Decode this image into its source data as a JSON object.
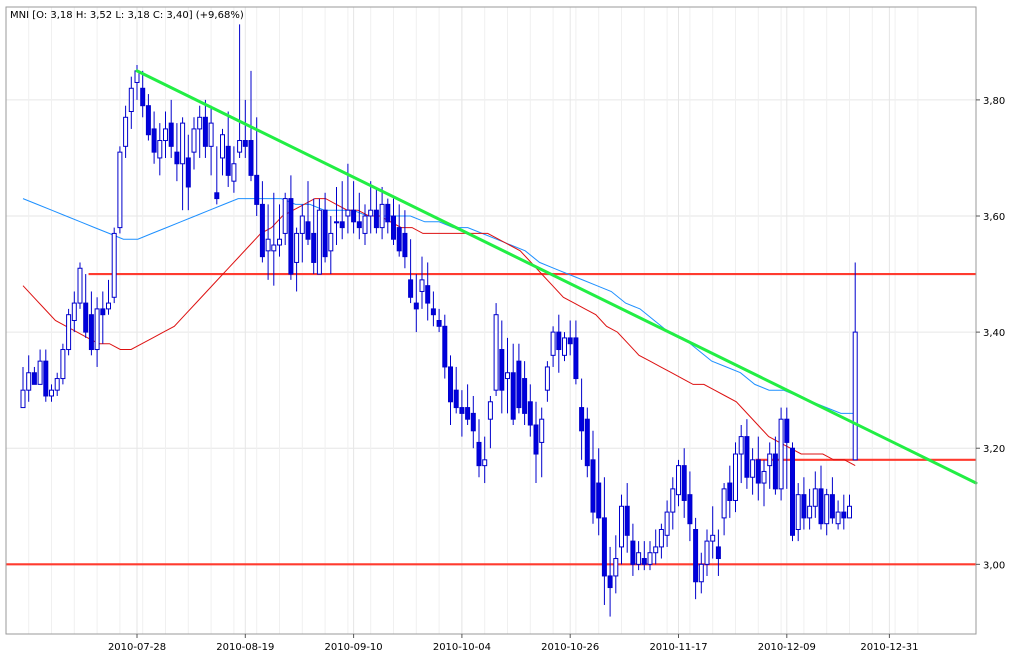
{
  "chart_data": {
    "type": "candlestick",
    "symbol": "MNI",
    "legend_text": "MNI [O: 3,18  H: 3,52  L: 3,18  C: 3,40] (+9,68%)",
    "last_bar": {
      "open": "3,18",
      "high": "3,52",
      "low": "3,18",
      "close": "3,40",
      "change": "+9,68%"
    },
    "x_tick_labels": [
      "2010-07-28",
      "2010-08-19",
      "2010-09-10",
      "2010-10-04",
      "2010-10-26",
      "2010-11-17",
      "2010-12-09",
      "2010-12-31"
    ],
    "y_tick_labels": [
      "3,00",
      "3,20",
      "3,40",
      "3,60",
      "3,80"
    ],
    "y_tick_values": [
      3.0,
      3.2,
      3.4,
      3.6,
      3.8
    ],
    "ylim": [
      2.88,
      3.96
    ],
    "grid": true,
    "colors": {
      "up_candle": "#ffffff",
      "down_candle": "#0000dd",
      "candle_outline": "#0000cc",
      "ma_short": "#dd1111",
      "ma_long": "#1e90ff",
      "trendline": "#22ee44",
      "levels": "#ff3b2f",
      "grid": "#e6e6e6"
    },
    "candles": [
      [
        3.27,
        3.34,
        3.27,
        3.3
      ],
      [
        3.3,
        3.36,
        3.28,
        3.33
      ],
      [
        3.33,
        3.34,
        3.31,
        3.31
      ],
      [
        3.31,
        3.37,
        3.31,
        3.35
      ],
      [
        3.35,
        3.37,
        3.28,
        3.29
      ],
      [
        3.29,
        3.31,
        3.28,
        3.3
      ],
      [
        3.3,
        3.33,
        3.29,
        3.32
      ],
      [
        3.32,
        3.38,
        3.31,
        3.37
      ],
      [
        3.37,
        3.44,
        3.36,
        3.43
      ],
      [
        3.42,
        3.47,
        3.4,
        3.45
      ],
      [
        3.45,
        3.52,
        3.44,
        3.51
      ],
      [
        3.45,
        3.5,
        3.39,
        3.4
      ],
      [
        3.43,
        3.47,
        3.36,
        3.37
      ],
      [
        3.37,
        3.46,
        3.34,
        3.44
      ],
      [
        3.44,
        3.47,
        3.38,
        3.43
      ],
      [
        3.44,
        3.49,
        3.43,
        3.45
      ],
      [
        3.46,
        3.58,
        3.45,
        3.57
      ],
      [
        3.58,
        3.72,
        3.57,
        3.71
      ],
      [
        3.72,
        3.79,
        3.7,
        3.77
      ],
      [
        3.78,
        3.84,
        3.75,
        3.82
      ],
      [
        3.83,
        3.86,
        3.8,
        3.85
      ],
      [
        3.82,
        3.85,
        3.77,
        3.79
      ],
      [
        3.79,
        3.81,
        3.73,
        3.74
      ],
      [
        3.75,
        3.78,
        3.69,
        3.71
      ],
      [
        3.7,
        3.76,
        3.67,
        3.73
      ],
      [
        3.73,
        3.78,
        3.7,
        3.75
      ],
      [
        3.76,
        3.8,
        3.7,
        3.72
      ],
      [
        3.71,
        3.76,
        3.66,
        3.69
      ],
      [
        3.69,
        3.77,
        3.61,
        3.76
      ],
      [
        3.7,
        3.74,
        3.61,
        3.65
      ],
      [
        3.71,
        3.77,
        3.68,
        3.75
      ],
      [
        3.75,
        3.79,
        3.7,
        3.77
      ],
      [
        3.77,
        3.8,
        3.7,
        3.72
      ],
      [
        3.72,
        3.79,
        3.67,
        3.76
      ],
      [
        3.64,
        3.72,
        3.62,
        3.63
      ],
      [
        3.7,
        3.75,
        3.67,
        3.74
      ],
      [
        3.72,
        3.78,
        3.65,
        3.67
      ],
      [
        3.66,
        3.72,
        3.64,
        3.69
      ],
      [
        3.71,
        3.93,
        3.7,
        3.73
      ],
      [
        3.73,
        3.8,
        3.7,
        3.72
      ],
      [
        3.73,
        3.85,
        3.66,
        3.67
      ],
      [
        3.67,
        3.77,
        3.6,
        3.62
      ],
      [
        3.62,
        3.66,
        3.52,
        3.53
      ],
      [
        3.54,
        3.62,
        3.49,
        3.56
      ],
      [
        3.54,
        3.64,
        3.48,
        3.55
      ],
      [
        3.55,
        3.62,
        3.53,
        3.56
      ],
      [
        3.57,
        3.64,
        3.55,
        3.63
      ],
      [
        3.63,
        3.67,
        3.49,
        3.5
      ],
      [
        3.52,
        3.58,
        3.47,
        3.57
      ],
      [
        3.57,
        3.62,
        3.52,
        3.6
      ],
      [
        3.59,
        3.66,
        3.55,
        3.56
      ],
      [
        3.57,
        3.63,
        3.5,
        3.52
      ],
      [
        3.5,
        3.63,
        3.5,
        3.61
      ],
      [
        3.61,
        3.64,
        3.52,
        3.53
      ],
      [
        3.54,
        3.6,
        3.5,
        3.57
      ],
      [
        3.59,
        3.65,
        3.55,
        3.59
      ],
      [
        3.59,
        3.66,
        3.56,
        3.58
      ],
      [
        3.6,
        3.69,
        3.57,
        3.61
      ],
      [
        3.61,
        3.66,
        3.57,
        3.59
      ],
      [
        3.59,
        3.64,
        3.56,
        3.58
      ],
      [
        3.57,
        3.62,
        3.55,
        3.6
      ],
      [
        3.6,
        3.66,
        3.57,
        3.61
      ],
      [
        3.61,
        3.65,
        3.57,
        3.58
      ],
      [
        3.58,
        3.65,
        3.56,
        3.62
      ],
      [
        3.62,
        3.63,
        3.57,
        3.59
      ],
      [
        3.6,
        3.63,
        3.55,
        3.56
      ],
      [
        3.58,
        3.62,
        3.53,
        3.54
      ],
      [
        3.57,
        3.61,
        3.51,
        3.53
      ],
      [
        3.49,
        3.56,
        3.45,
        3.46
      ],
      [
        3.45,
        3.5,
        3.4,
        3.44
      ],
      [
        3.47,
        3.53,
        3.44,
        3.49
      ],
      [
        3.48,
        3.52,
        3.42,
        3.45
      ],
      [
        3.44,
        3.47,
        3.41,
        3.43
      ],
      [
        3.42,
        3.44,
        3.4,
        3.41
      ],
      [
        3.41,
        3.43,
        3.32,
        3.34
      ],
      [
        3.34,
        3.36,
        3.24,
        3.28
      ],
      [
        3.3,
        3.34,
        3.26,
        3.27
      ],
      [
        3.27,
        3.3,
        3.22,
        3.26
      ],
      [
        3.27,
        3.31,
        3.24,
        3.25
      ],
      [
        3.26,
        3.29,
        3.2,
        3.23
      ],
      [
        3.21,
        3.25,
        3.15,
        3.17
      ],
      [
        3.17,
        3.22,
        3.14,
        3.18
      ],
      [
        3.25,
        3.29,
        3.2,
        3.28
      ],
      [
        3.3,
        3.45,
        3.29,
        3.43
      ],
      [
        3.37,
        3.42,
        3.26,
        3.3
      ],
      [
        3.32,
        3.39,
        3.26,
        3.33
      ],
      [
        3.33,
        3.38,
        3.24,
        3.25
      ],
      [
        3.35,
        3.38,
        3.26,
        3.27
      ],
      [
        3.32,
        3.35,
        3.24,
        3.26
      ],
      [
        3.28,
        3.31,
        3.22,
        3.24
      ],
      [
        3.24,
        3.28,
        3.14,
        3.19
      ],
      [
        3.21,
        3.27,
        3.15,
        3.25
      ],
      [
        3.3,
        3.35,
        3.28,
        3.34
      ],
      [
        3.36,
        3.41,
        3.34,
        3.4
      ],
      [
        3.4,
        3.43,
        3.33,
        3.37
      ],
      [
        3.36,
        3.4,
        3.35,
        3.39
      ],
      [
        3.39,
        3.42,
        3.36,
        3.38
      ],
      [
        3.39,
        3.42,
        3.31,
        3.32
      ],
      [
        3.27,
        3.32,
        3.18,
        3.23
      ],
      [
        3.25,
        3.27,
        3.15,
        3.17
      ],
      [
        3.18,
        3.23,
        3.07,
        3.09
      ],
      [
        3.14,
        3.2,
        3.05,
        3.08
      ],
      [
        3.08,
        3.15,
        2.93,
        2.98
      ],
      [
        2.98,
        3.03,
        2.91,
        2.96
      ],
      [
        2.98,
        3.05,
        2.95,
        3.01
      ],
      [
        3.03,
        3.12,
        3.0,
        3.1
      ],
      [
        3.1,
        3.14,
        3.02,
        3.05
      ],
      [
        3.04,
        3.07,
        2.98,
        3.0
      ],
      [
        3.0,
        3.04,
        2.99,
        3.02
      ],
      [
        3.01,
        3.04,
        2.99,
        3.0
      ],
      [
        3.0,
        3.04,
        2.99,
        3.02
      ],
      [
        3.02,
        3.06,
        3.0,
        3.03
      ],
      [
        3.03,
        3.07,
        3.01,
        3.06
      ],
      [
        3.05,
        3.11,
        3.03,
        3.09
      ],
      [
        3.09,
        3.15,
        3.06,
        3.13
      ],
      [
        3.12,
        3.18,
        3.1,
        3.17
      ],
      [
        3.17,
        3.2,
        3.08,
        3.11
      ],
      [
        3.12,
        3.16,
        3.04,
        3.07
      ],
      [
        3.06,
        3.08,
        2.94,
        2.97
      ],
      [
        2.97,
        3.02,
        2.95,
        3.0
      ],
      [
        3.0,
        3.06,
        2.98,
        3.04
      ],
      [
        3.04,
        3.1,
        3.01,
        3.05
      ],
      [
        3.03,
        3.06,
        2.98,
        3.01
      ],
      [
        3.08,
        3.14,
        3.05,
        3.13
      ],
      [
        3.14,
        3.17,
        3.08,
        3.11
      ],
      [
        3.11,
        3.21,
        3.09,
        3.19
      ],
      [
        3.19,
        3.24,
        3.14,
        3.22
      ],
      [
        3.22,
        3.25,
        3.13,
        3.15
      ],
      [
        3.15,
        3.2,
        3.12,
        3.18
      ],
      [
        3.18,
        3.22,
        3.11,
        3.14
      ],
      [
        3.14,
        3.18,
        3.1,
        3.16
      ],
      [
        3.17,
        3.21,
        3.13,
        3.19
      ],
      [
        3.19,
        3.22,
        3.12,
        3.13
      ],
      [
        3.13,
        3.27,
        3.11,
        3.25
      ],
      [
        3.25,
        3.27,
        3.13,
        3.21
      ],
      [
        3.2,
        3.21,
        3.04,
        3.05
      ],
      [
        3.06,
        3.14,
        3.04,
        3.12
      ],
      [
        3.12,
        3.15,
        3.06,
        3.08
      ],
      [
        3.08,
        3.13,
        3.06,
        3.1
      ],
      [
        3.1,
        3.16,
        3.08,
        3.13
      ],
      [
        3.13,
        3.17,
        3.06,
        3.07
      ],
      [
        3.07,
        3.13,
        3.05,
        3.12
      ],
      [
        3.12,
        3.15,
        3.07,
        3.08
      ],
      [
        3.07,
        3.11,
        3.06,
        3.09
      ],
      [
        3.09,
        3.12,
        3.06,
        3.08
      ],
      [
        3.08,
        3.12,
        3.08,
        3.1
      ],
      [
        3.18,
        3.52,
        3.18,
        3.4
      ]
    ],
    "ma_short": [
      3.48,
      3.46,
      3.44,
      3.42,
      3.41,
      3.4,
      3.39,
      3.38,
      3.38,
      3.37,
      3.37,
      3.38,
      3.39,
      3.4,
      3.41,
      3.43,
      3.45,
      3.47,
      3.49,
      3.51,
      3.53,
      3.55,
      3.57,
      3.58,
      3.6,
      3.61,
      3.62,
      3.63,
      3.63,
      3.62,
      3.61,
      3.61,
      3.6,
      3.6,
      3.59,
      3.58,
      3.58,
      3.57,
      3.57,
      3.57,
      3.57,
      3.57,
      3.57,
      3.57,
      3.56,
      3.55,
      3.54,
      3.52,
      3.5,
      3.48,
      3.46,
      3.45,
      3.44,
      3.43,
      3.41,
      3.4,
      3.38,
      3.36,
      3.35,
      3.34,
      3.33,
      3.32,
      3.31,
      3.31,
      3.3,
      3.29,
      3.28,
      3.26,
      3.24,
      3.22,
      3.21,
      3.2,
      3.19,
      3.19,
      3.19,
      3.18,
      3.18,
      3.17
    ],
    "ma_long": [
      3.63,
      3.62,
      3.61,
      3.6,
      3.59,
      3.58,
      3.57,
      3.56,
      3.56,
      3.57,
      3.58,
      3.59,
      3.6,
      3.61,
      3.62,
      3.63,
      3.63,
      3.63,
      3.63,
      3.62,
      3.62,
      3.61,
      3.61,
      3.61,
      3.6,
      3.6,
      3.6,
      3.6,
      3.59,
      3.59,
      3.58,
      3.58,
      3.57,
      3.56,
      3.55,
      3.54,
      3.52,
      3.51,
      3.5,
      3.49,
      3.48,
      3.47,
      3.45,
      3.44,
      3.42,
      3.4,
      3.39,
      3.37,
      3.35,
      3.34,
      3.33,
      3.31,
      3.3,
      3.3,
      3.29,
      3.28,
      3.27,
      3.26,
      3.26
    ],
    "trendline": [
      {
        "bar": 20,
        "y": 3.85
      },
      {
        "bar": 161,
        "y": 3.17
      }
    ],
    "horizontal_levels": [
      {
        "y": 3.5,
        "from_bar": 12
      },
      {
        "y": 3.0,
        "from_bar": 0
      },
      {
        "y": 3.18,
        "from_bar": 129
      }
    ]
  }
}
